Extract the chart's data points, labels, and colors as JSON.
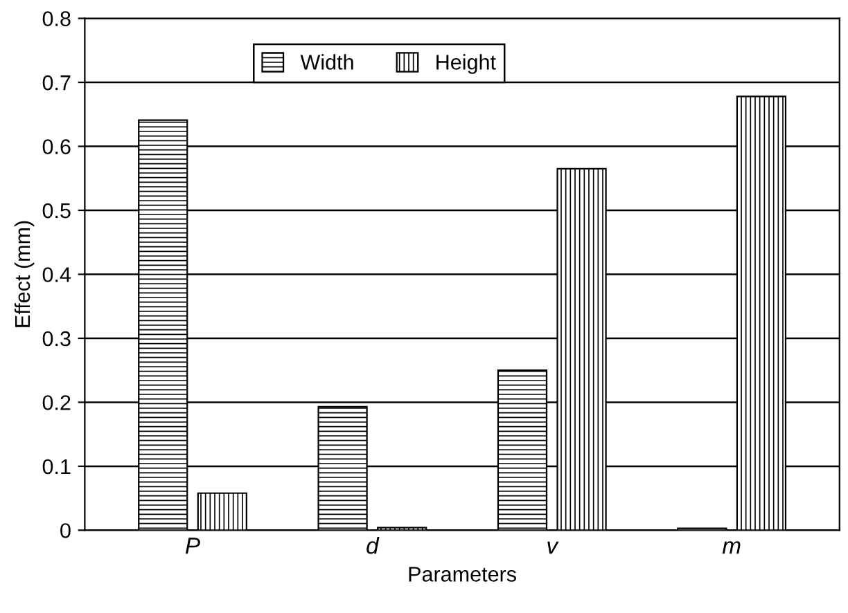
{
  "chart_data": {
    "type": "bar",
    "xlabel": "Parameters",
    "ylabel": "Effect (mm)",
    "categories": [
      "P",
      "d",
      "v",
      "m"
    ],
    "series": [
      {
        "name": "Width",
        "color": "#000000",
        "values": [
          0.641,
          0.193,
          0.25,
          0.003
        ]
      },
      {
        "name": "Height",
        "color": "#000000",
        "values": [
          0.058,
          0.004,
          0.565,
          0.678
        ]
      }
    ],
    "ylim": [
      0,
      0.8
    ],
    "yticks": [
      0,
      0.1,
      0.2,
      0.3,
      0.4,
      0.5,
      0.6,
      0.7,
      0.8
    ],
    "grid": "y",
    "legend": "top"
  }
}
